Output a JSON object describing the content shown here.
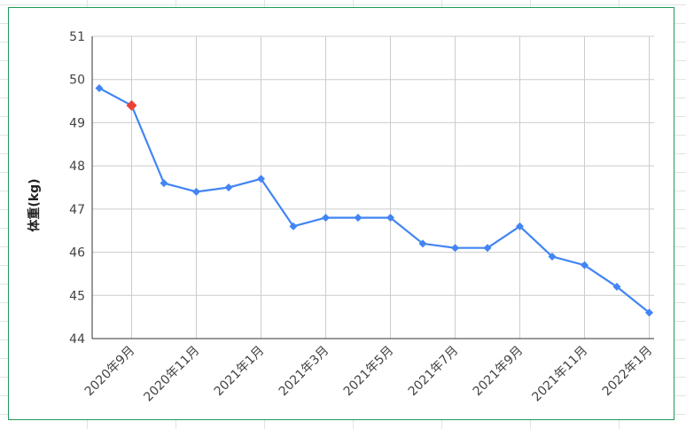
{
  "chart_data": {
    "type": "line",
    "ylabel": "体重(kg)",
    "xlabel": "",
    "ylim": [
      44,
      51
    ],
    "yticks": [
      "44",
      "45",
      "46",
      "47",
      "48",
      "49",
      "50",
      "51"
    ],
    "x": [
      "2020年8月",
      "2020年9月",
      "2020年10月",
      "2020年11月",
      "2020年12月",
      "2021年1月",
      "2021年2月",
      "2021年3月",
      "2021年4月",
      "2021年5月",
      "2021年6月",
      "2021年7月",
      "2021年8月",
      "2021年9月",
      "2021年10月",
      "2021年11月",
      "2021年12月",
      "2022年1月"
    ],
    "xtick_labels": [
      "2020年9月",
      "2020年11月",
      "2021年1月",
      "2021年3月",
      "2021年5月",
      "2021年7月",
      "2021年9月",
      "2021年11月",
      "2022年1月"
    ],
    "series": [
      {
        "color": "#4285f4",
        "values": [
          49.8,
          49.4,
          47.6,
          47.4,
          47.5,
          47.7,
          46.6,
          46.8,
          46.8,
          46.8,
          46.2,
          46.1,
          46.1,
          46.6,
          45.9,
          45.7,
          45.2,
          44.6
        ],
        "highlight_index": 1,
        "highlight_color": "#ea4335"
      }
    ],
    "grid": true,
    "legend": "none",
    "marker": "diamond"
  }
}
